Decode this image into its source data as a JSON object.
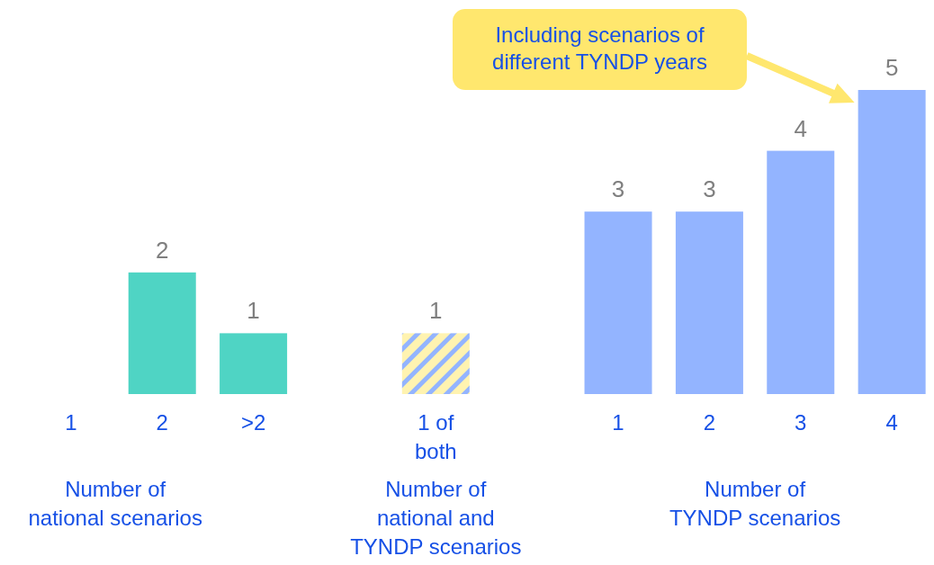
{
  "chart_data": {
    "type": "bar",
    "categories": [
      "1",
      "2",
      ">2",
      null,
      "1 of both",
      null,
      "1",
      "2",
      "3",
      "4"
    ],
    "values": [
      null,
      2,
      1,
      null,
      1,
      null,
      3,
      3,
      4,
      5
    ],
    "colors": [
      null,
      "#4fd4c4",
      "#4fd4c4",
      null,
      "#93b4ff",
      null,
      "#93b4ff",
      "#93b4ff",
      "#93b4ff",
      "#93b4ff"
    ],
    "data_labels": true,
    "annotations": [
      "Number of national scenarios",
      "Number of national and TYNDP scenarios",
      "Number of TYNDP scenarios",
      "Including scenarios of different TYNDP years"
    ]
  }
}
